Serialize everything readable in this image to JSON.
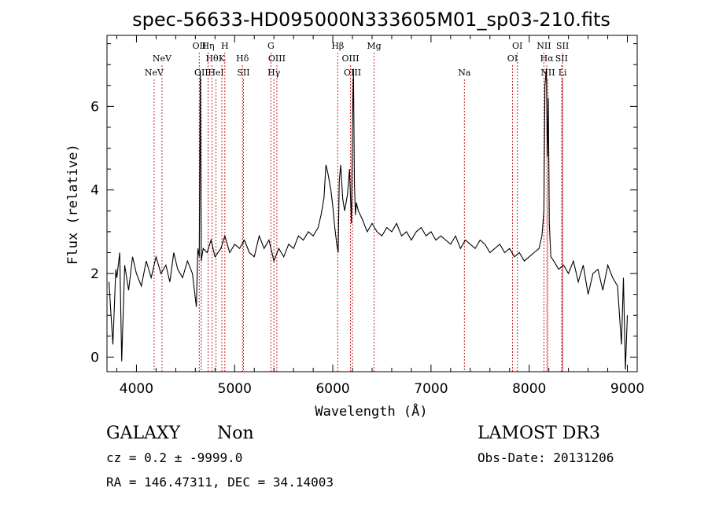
{
  "chart_data": {
    "type": "line",
    "title": "spec-56633-HD095000N333605M01_sp03-210.fits",
    "xlabel": "Wavelength (Å)",
    "ylabel": "Flux (relative)",
    "xlim": [
      3700,
      9100
    ],
    "ylim": [
      -0.35,
      7.7
    ],
    "x_ticks": [
      4000,
      5000,
      6000,
      7000,
      8000,
      9000
    ],
    "y_ticks": [
      0,
      2,
      4,
      6
    ],
    "grid": false,
    "spectrum": {
      "name": "flux",
      "color": "#000000",
      "x": [
        3720,
        3760,
        3790,
        3800,
        3830,
        3850,
        3880,
        3920,
        3960,
        4000,
        4050,
        4100,
        4150,
        4200,
        4250,
        4300,
        4340,
        4380,
        4420,
        4470,
        4520,
        4570,
        4610,
        4625,
        4640,
        4650,
        4660,
        4680,
        4720,
        4760,
        4800,
        4860,
        4900,
        4950,
        5000,
        5050,
        5100,
        5150,
        5200,
        5250,
        5300,
        5350,
        5400,
        5450,
        5500,
        5550,
        5600,
        5650,
        5700,
        5750,
        5800,
        5850,
        5880,
        5910,
        5930,
        5950,
        5980,
        6000,
        6020,
        6040,
        6055,
        6065,
        6080,
        6100,
        6120,
        6150,
        6170,
        6190,
        6200,
        6210,
        6220,
        6230,
        6240,
        6260,
        6300,
        6350,
        6400,
        6450,
        6500,
        6550,
        6600,
        6650,
        6700,
        6750,
        6800,
        6850,
        6900,
        6950,
        7000,
        7050,
        7100,
        7150,
        7200,
        7250,
        7300,
        7350,
        7400,
        7450,
        7500,
        7550,
        7600,
        7650,
        7700,
        7750,
        7800,
        7850,
        7900,
        7950,
        8000,
        8050,
        8100,
        8130,
        8150,
        8160,
        8175,
        8185,
        8195,
        8205,
        8220,
        8250,
        8300,
        8350,
        8400,
        8450,
        8500,
        8550,
        8600,
        8650,
        8700,
        8750,
        8800,
        8850,
        8900,
        8940,
        8960,
        8980,
        9000
      ],
      "y": [
        1.8,
        0.3,
        2.1,
        1.9,
        2.5,
        -0.1,
        2.2,
        1.6,
        2.4,
        2.0,
        1.7,
        2.3,
        1.9,
        2.4,
        2.0,
        2.2,
        1.8,
        2.5,
        2.1,
        1.9,
        2.3,
        2.0,
        1.2,
        2.6,
        2.4,
        6.8,
        2.3,
        2.6,
        2.5,
        2.8,
        2.4,
        2.6,
        2.9,
        2.5,
        2.7,
        2.6,
        2.8,
        2.5,
        2.4,
        2.9,
        2.6,
        2.8,
        2.3,
        2.6,
        2.4,
        2.7,
        2.6,
        2.9,
        2.8,
        3.0,
        2.9,
        3.1,
        3.4,
        3.8,
        4.6,
        4.4,
        4.0,
        3.6,
        3.1,
        2.7,
        2.5,
        4.2,
        4.6,
        3.8,
        3.5,
        3.9,
        4.5,
        3.2,
        5.5,
        6.9,
        4.2,
        3.4,
        3.7,
        3.5,
        3.3,
        3.0,
        3.2,
        3.0,
        2.9,
        3.1,
        3.0,
        3.2,
        2.9,
        3.0,
        2.8,
        3.0,
        3.1,
        2.9,
        3.0,
        2.8,
        2.9,
        2.8,
        2.7,
        2.9,
        2.6,
        2.8,
        2.7,
        2.6,
        2.8,
        2.7,
        2.5,
        2.6,
        2.7,
        2.5,
        2.6,
        2.4,
        2.5,
        2.3,
        2.4,
        2.5,
        2.6,
        2.9,
        3.5,
        6.5,
        6.9,
        4.8,
        6.2,
        3.2,
        2.4,
        2.3,
        2.1,
        2.2,
        2.0,
        2.3,
        1.8,
        2.2,
        1.5,
        2.0,
        2.1,
        1.6,
        2.2,
        1.9,
        1.7,
        0.3,
        1.9,
        -0.3,
        1.0
      ]
    },
    "line_markers": [
      {
        "label": "NeV",
        "wavelength": 4180,
        "row": 3
      },
      {
        "label": "NeV",
        "wavelength": 4260,
        "row": 2
      },
      {
        "label": "OII",
        "wavelength": 4640,
        "row": 1
      },
      {
        "label": "OII",
        "wavelength": 4660,
        "row": 3
      },
      {
        "label": "Hη",
        "wavelength": 4730,
        "row": 1
      },
      {
        "label": "Hθ",
        "wavelength": 4770,
        "row": 2
      },
      {
        "label": "HeI",
        "wavelength": 4810,
        "row": 3
      },
      {
        "label": "H",
        "wavelength": 4900,
        "row": 1
      },
      {
        "label": "K",
        "wavelength": 4870,
        "row": 2
      },
      {
        "label": "Hδ",
        "wavelength": 5080,
        "row": 2
      },
      {
        "label": "SII",
        "wavelength": 5090,
        "row": 3
      },
      {
        "label": "G",
        "wavelength": 5370,
        "row": 1
      },
      {
        "label": "OIII",
        "wavelength": 5430,
        "row": 2
      },
      {
        "label": "Hγ",
        "wavelength": 5400,
        "row": 3
      },
      {
        "label": "Hβ",
        "wavelength": 6050,
        "row": 1
      },
      {
        "label": "OIII",
        "wavelength": 6180,
        "row": 2
      },
      {
        "label": "OIII",
        "wavelength": 6200,
        "row": 3
      },
      {
        "label": "Mg",
        "wavelength": 6420,
        "row": 1
      },
      {
        "label": "Na",
        "wavelength": 7340,
        "row": 3
      },
      {
        "label": "OI",
        "wavelength": 7880,
        "row": 1
      },
      {
        "label": "OI",
        "wavelength": 7830,
        "row": 2
      },
      {
        "label": "NII",
        "wavelength": 8150,
        "row": 1
      },
      {
        "label": "Hα",
        "wavelength": 8180,
        "row": 2
      },
      {
        "label": "NII",
        "wavelength": 8190,
        "row": 3
      },
      {
        "label": "SII",
        "wavelength": 8340,
        "row": 1
      },
      {
        "label": "SII",
        "wavelength": 8330,
        "row": 2
      },
      {
        "label": "Li",
        "wavelength": 8340,
        "row": 3
      }
    ],
    "marker_color": "#cc2222"
  },
  "info": {
    "object_class": "GALAXY",
    "subclass": "Non",
    "cz": "cz = 0.2 ± -9999.0",
    "coords": "RA = 146.47311, DEC =  34.14003",
    "survey": "LAMOST DR3",
    "obs_date": "Obs-Date: 20131206"
  }
}
